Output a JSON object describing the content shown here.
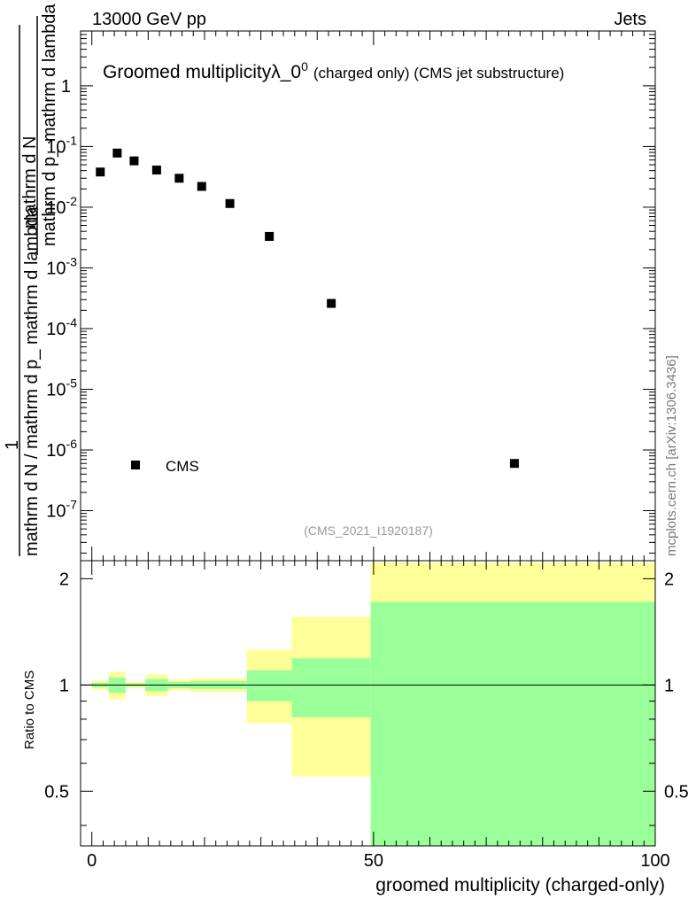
{
  "header": {
    "energy_label": "13000 GeV pp",
    "category_label": "Jets"
  },
  "watermark": "mcplots.cern.ch [arXiv:1306.3436]",
  "chart_data": [
    {
      "type": "scatter",
      "panel": "main",
      "title": "Groomed multiplicityλ_0",
      "title_superscript": "0",
      "title_suffix": "(charged only) (CMS jet substructure)",
      "yscale": "log",
      "ylim": [
        1.5e-08,
        8
      ],
      "xlim": [
        -2,
        100
      ],
      "ylabel_numerator": "1",
      "ylabel_denominator": "mathrm d N / mathrm d p_ mathrm d lambda",
      "ylabel_right_numerator": "mathrm d N",
      "ylabel_right_denominator": "mathrm d p_ mathrm d lambda",
      "y_ticks": [
        {
          "value": 1,
          "label": "1"
        },
        {
          "value": 0.1,
          "label": "10",
          "exp": "-1"
        },
        {
          "value": 0.01,
          "label": "10",
          "exp": "-2"
        },
        {
          "value": 0.001,
          "label": "10",
          "exp": "-3"
        },
        {
          "value": 0.0001,
          "label": "10",
          "exp": "-4"
        },
        {
          "value": 1e-05,
          "label": "10",
          "exp": "-5"
        },
        {
          "value": 1e-06,
          "label": "10",
          "exp": "-6"
        },
        {
          "value": 1e-07,
          "label": "10",
          "exp": "-7"
        }
      ],
      "series": [
        {
          "name": "CMS",
          "marker": "square",
          "color": "#000000",
          "x": [
            1.5,
            4.5,
            7.5,
            11.5,
            15.5,
            19.5,
            24.5,
            31.5,
            42.5,
            75
          ],
          "y": [
            0.038,
            0.078,
            0.058,
            0.041,
            0.03,
            0.022,
            0.0115,
            0.0033,
            0.00026,
            6e-07
          ]
        }
      ],
      "legend": {
        "position": "lower-left",
        "entries": [
          "CMS"
        ]
      },
      "analysis_tag": "(CMS_2021_I1920187)"
    },
    {
      "type": "area",
      "panel": "ratio",
      "ylabel": "Ratio to CMS",
      "xlabel": "groomed multiplicity (charged-only)",
      "xlim": [
        -2,
        100
      ],
      "ylim": [
        0.35,
        2.25
      ],
      "x_ticks": [
        {
          "value": 0,
          "label": "0"
        },
        {
          "value": 50,
          "label": "50"
        },
        {
          "value": 100,
          "label": "100"
        }
      ],
      "y_ticks": [
        {
          "value": 0.5,
          "label": "0.5"
        },
        {
          "value": 1,
          "label": "1"
        },
        {
          "value": 2,
          "label": "2"
        }
      ],
      "reference_line": 1,
      "bins": [
        {
          "lo": 0,
          "hi": 3,
          "inner": [
            0.985,
            1.015
          ],
          "outer": [
            0.97,
            1.03
          ]
        },
        {
          "lo": 3,
          "hi": 6,
          "inner": [
            0.95,
            1.05
          ],
          "outer": [
            0.91,
            1.09
          ]
        },
        {
          "lo": 6,
          "hi": 9.5,
          "inner": [
            0.99,
            1.01
          ],
          "outer": [
            0.98,
            1.02
          ]
        },
        {
          "lo": 9.5,
          "hi": 13.5,
          "inner": [
            0.96,
            1.04
          ],
          "outer": [
            0.93,
            1.07
          ]
        },
        {
          "lo": 13.5,
          "hi": 17.5,
          "inner": [
            0.98,
            1.02
          ],
          "outer": [
            0.965,
            1.035
          ]
        },
        {
          "lo": 17.5,
          "hi": 21.5,
          "inner": [
            0.975,
            1.025
          ],
          "outer": [
            0.955,
            1.045
          ]
        },
        {
          "lo": 21.5,
          "hi": 27.5,
          "inner": [
            0.975,
            1.025
          ],
          "outer": [
            0.955,
            1.045
          ]
        },
        {
          "lo": 27.5,
          "hi": 35.5,
          "inner": [
            0.9,
            1.1
          ],
          "outer": [
            0.78,
            1.26
          ]
        },
        {
          "lo": 35.5,
          "hi": 49.5,
          "inner": [
            0.81,
            1.19
          ],
          "outer": [
            0.55,
            1.56
          ]
        },
        {
          "lo": 49.5,
          "hi": 100,
          "inner": [
            0.35,
            1.72
          ],
          "outer": [
            0.35,
            2.22
          ]
        }
      ],
      "colors": {
        "inner": "#99ff99",
        "outer": "#ffff99"
      }
    }
  ]
}
